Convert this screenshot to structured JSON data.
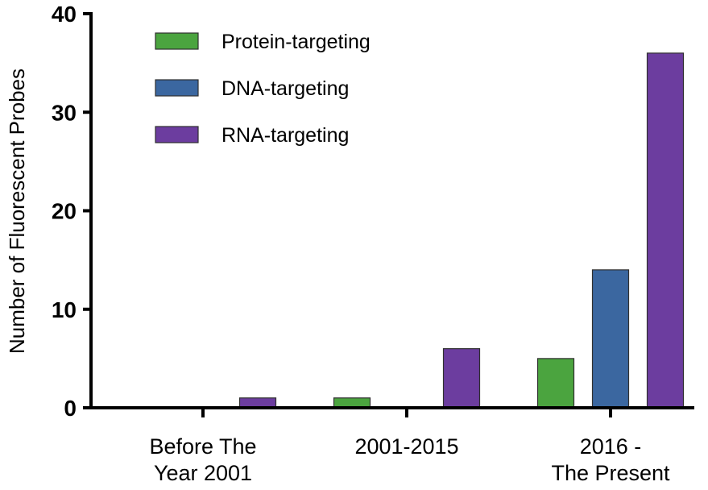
{
  "chart_data": {
    "type": "bar",
    "title": "",
    "xlabel": "",
    "ylabel": "Number of Fluorescent  Probes",
    "ylim": [
      0,
      40
    ],
    "yticks": [
      0,
      10,
      20,
      30,
      40
    ],
    "categories": [
      [
        "Before The",
        "Year 2001"
      ],
      [
        "2001-2015"
      ],
      [
        "2016 -",
        "The Present"
      ]
    ],
    "series": [
      {
        "name": "Protein-targeting",
        "color": "#4ba43f",
        "values": [
          0,
          1,
          5
        ]
      },
      {
        "name": "DNA-targeting",
        "color": "#3b67a0",
        "values": [
          0,
          0,
          14
        ]
      },
      {
        "name": "RNA-targeting",
        "color": "#6c3d9f",
        "values": [
          1,
          6,
          36
        ]
      }
    ],
    "legend_position": "top-left",
    "grid": false
  }
}
